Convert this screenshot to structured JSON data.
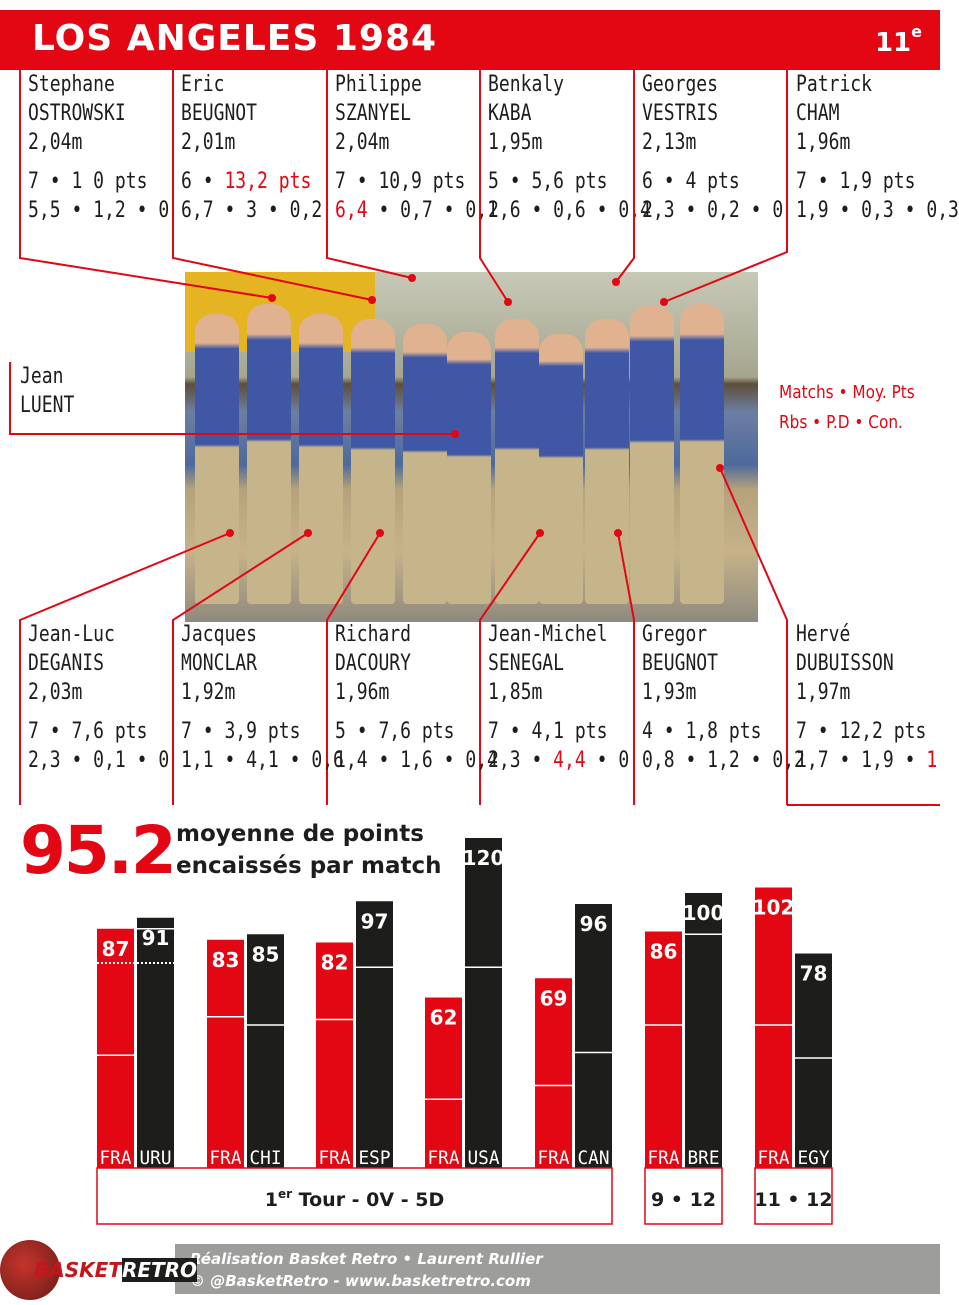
{
  "header": {
    "title": "LOS ANGELES 1984",
    "rank": "11",
    "rank_suffix": "e"
  },
  "top_players": [
    {
      "first": "Stephane",
      "last": "OSTROWSKI",
      "height": "2,04m",
      "line1": "7 • 1 0 pts",
      "line2": "5,5 • 1,2 • 0"
    },
    {
      "first": "Eric",
      "last": "BEUGNOT",
      "height": "2,01m",
      "line1_a": "6 • ",
      "line1_b": "13,2 pts",
      "line2": "6,7 • 3 • 0,2"
    },
    {
      "first": "Philippe",
      "last": "SZANYEL",
      "height": "2,04m",
      "line1": "7 • 10,9 pts",
      "line2_a": "6,4",
      "line2_b": " • 0,7 • 0,1"
    },
    {
      "first": "Benkaly",
      "last": "KABA",
      "height": "1,95m",
      "line1": "5 • 5,6 pts",
      "line2": "2,6 • 0,6 • 0,4"
    },
    {
      "first": "Georges",
      "last": "VESTRIS",
      "height": "2,13m",
      "line1": "6 • 4 pts",
      "line2": "2,3 • 0,2 • 0"
    },
    {
      "first": "Patrick",
      "last": "CHAM",
      "height": "1,96m",
      "line1": "7 • 1,9 pts",
      "line2": "1,9 • 0,3 • 0,3"
    }
  ],
  "bottom_players": [
    {
      "first": "Jean-Luc",
      "last": "DEGANIS",
      "height": "2,03m",
      "line1": "7 • 7,6 pts",
      "line2": "2,3 • 0,1 • 0"
    },
    {
      "first": "Jacques",
      "last": "MONCLAR",
      "height": "1,92m",
      "line1": "7 • 3,9 pts",
      "line2": "1,1 • 4,1 • 0,6"
    },
    {
      "first": "Richard",
      "last": "DACOURY",
      "height": "1,96m",
      "line1": "5 • 7,6 pts",
      "line2": "1,4 • 1,6 • 0,4"
    },
    {
      "first": "Jean-Michel",
      "last": "SENEGAL",
      "height": "1,85m",
      "line1": "7 • 4,1 pts",
      "line2_a": "2,3 • ",
      "line2_b": "4,4",
      "line2_c": " • 0"
    },
    {
      "first": "Gregor",
      "last": "BEUGNOT",
      "height": "1,93m",
      "line1": "4 • 1,8 pts",
      "line2": "0,8 • 1,2 • 0,2"
    },
    {
      "first": "Hervé",
      "last": "DUBUISSON",
      "height": "1,97m",
      "line1": "7 • 12,2 pts",
      "line2_a": "1,7 • 1,9 • ",
      "line2_b": "1"
    }
  ],
  "coach": {
    "first": "Jean",
    "last": "LUENT"
  },
  "legend": {
    "line1": "Matchs • Moy. Pts",
    "line2": "Rbs • P.D • Con."
  },
  "summary": {
    "value": "95.2",
    "caption_line1": "moyenne de points",
    "caption_line2": "encaissés par match"
  },
  "chart_data": {
    "type": "bar",
    "categories": [
      "FRA-URU",
      "FRA-CHI",
      "FRA-ESP",
      "FRA-USA",
      "FRA-CAN",
      "FRA-BRE",
      "FRA-EGY"
    ],
    "series": [
      {
        "name": "FRA",
        "values": [
          87,
          83,
          82,
          62,
          69,
          86,
          102
        ]
      },
      {
        "values": [
          91,
          85,
          97,
          120,
          96,
          100,
          78
        ]
      }
    ],
    "team_labels": [
      [
        "FRA",
        "URU"
      ],
      [
        "FRA",
        "CHI"
      ],
      [
        "FRA",
        "ESP"
      ],
      [
        "FRA",
        "USA"
      ],
      [
        "FRA",
        "CAN"
      ],
      [
        "FRA",
        "BRE"
      ],
      [
        "FRA",
        "EGY"
      ]
    ],
    "halftime": [
      [
        41,
        87
      ],
      [
        55,
        52
      ],
      [
        54,
        73
      ],
      [
        25,
        73
      ],
      [
        30,
        42
      ],
      [
        52,
        85
      ],
      [
        52,
        40
      ]
    ],
    "groups": [
      {
        "label_sup": "er",
        "label_a": "1",
        "label_b": " Tour - 0V - 5D",
        "games": [
          0,
          4
        ]
      },
      {
        "label": "9 • 12",
        "games": [
          5,
          5
        ]
      },
      {
        "label": "11 • 12",
        "games": [
          6,
          6
        ]
      }
    ],
    "ylim": [
      0,
      120
    ],
    "colors": {
      "france": "#e30613",
      "opponent": "#1d1d1b"
    }
  },
  "footer": {
    "credit": "Réalisation Basket Retro  •  Laurent Rullier",
    "links": "© @BasketRetro - www.basketretro.com",
    "logo_a": "BASKET",
    "logo_b": "RETRO"
  }
}
